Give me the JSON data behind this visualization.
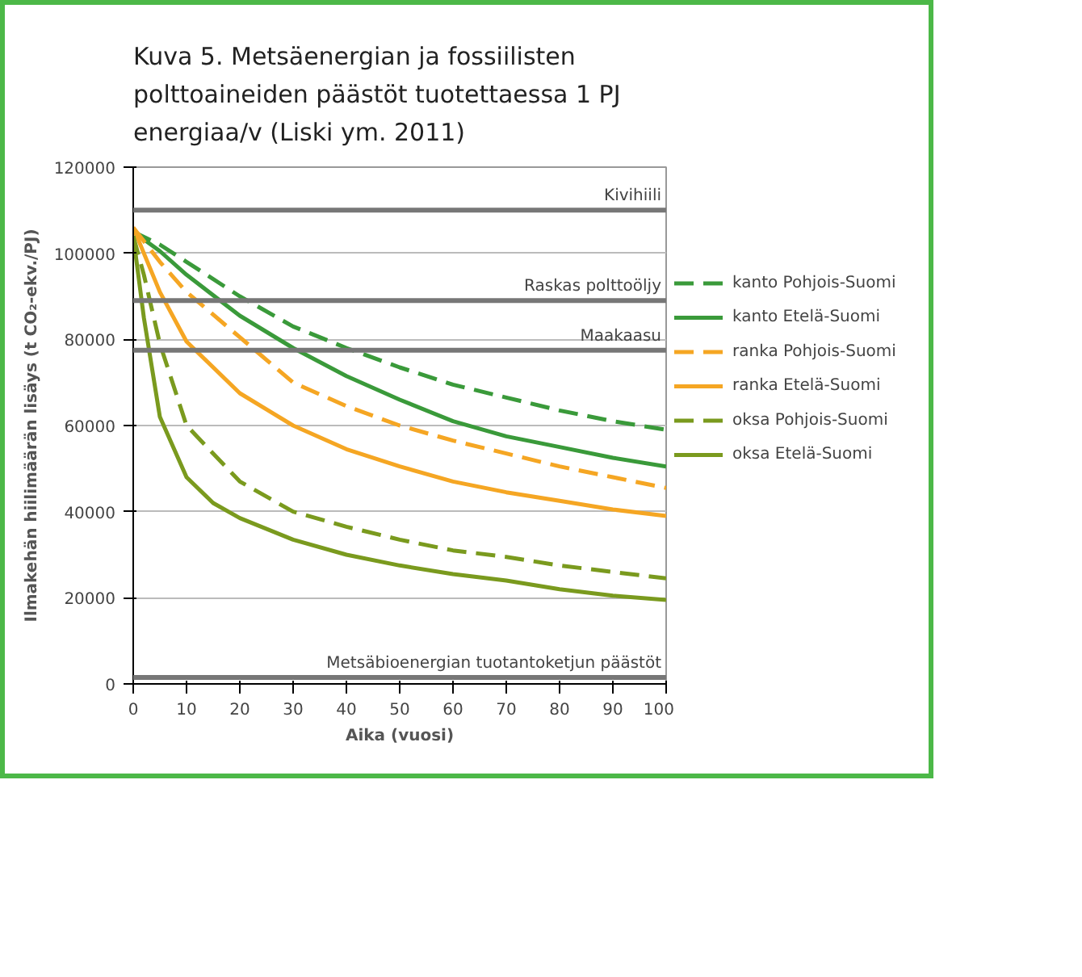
{
  "chart_data": {
    "type": "line",
    "title": "Kuva 5. Metsäenergian ja fossiilisten polttoaineiden päästöt tuotettaessa 1 PJ energiaa/v (Liski ym. 2011)",
    "xlabel": "Aika (vuosi)",
    "ylabel": "Ilmakehän hiilimäärän lisäys (t CO₂-ekv./PJ)",
    "xlim": [
      0,
      100
    ],
    "ylim": [
      0,
      120000
    ],
    "xticks": [
      0,
      10,
      20,
      30,
      40,
      50,
      60,
      70,
      80,
      90,
      100
    ],
    "yticks": [
      0,
      20000,
      40000,
      60000,
      80000,
      100000,
      120000
    ],
    "grid": "y",
    "legend": "right",
    "series": [
      {
        "name": "kanto Pohjois-Suomi",
        "color": "#3a9a3a",
        "line_style": "dashed",
        "x": [
          0,
          5,
          10,
          20,
          30,
          40,
          50,
          60,
          70,
          80,
          90,
          100
        ],
        "values": [
          105000,
          102000,
          98000,
          90000,
          83000,
          78000,
          73500,
          69500,
          66500,
          63500,
          61000,
          59000
        ]
      },
      {
        "name": "kanto Etelä-Suomi",
        "color": "#3a9a3a",
        "line_style": "solid",
        "x": [
          0,
          5,
          10,
          20,
          30,
          40,
          50,
          60,
          70,
          80,
          90,
          100
        ],
        "values": [
          105000,
          100500,
          95000,
          85500,
          78000,
          71500,
          66000,
          61000,
          57500,
          55000,
          52500,
          50500
        ]
      },
      {
        "name": "ranka Pohjois-Suomi",
        "color": "#f5a623",
        "line_style": "dashed",
        "x": [
          0,
          5,
          10,
          20,
          30,
          40,
          50,
          60,
          70,
          80,
          90,
          100
        ],
        "values": [
          106000,
          98000,
          91000,
          80500,
          70000,
          64500,
          60000,
          56500,
          53500,
          50500,
          48000,
          45500
        ]
      },
      {
        "name": "ranka Etelä-Suomi",
        "color": "#f5a623",
        "line_style": "solid",
        "x": [
          0,
          5,
          10,
          20,
          30,
          40,
          50,
          60,
          70,
          80,
          90,
          100
        ],
        "values": [
          106000,
          91000,
          79500,
          67500,
          60000,
          54500,
          50500,
          47000,
          44500,
          42500,
          40500,
          39000
        ]
      },
      {
        "name": "oksa Pohjois-Suomi",
        "color": "#7a9a1e",
        "line_style": "dashed",
        "x": [
          0,
          2,
          5,
          10,
          20,
          30,
          40,
          50,
          60,
          70,
          80,
          90,
          100
        ],
        "values": [
          104000,
          95000,
          79000,
          60000,
          47000,
          40000,
          36500,
          33500,
          31000,
          29500,
          27500,
          26000,
          24500
        ]
      },
      {
        "name": "oksa Etelä-Suomi",
        "color": "#7a9a1e",
        "line_style": "solid",
        "x": [
          0,
          2,
          5,
          10,
          15,
          20,
          30,
          40,
          50,
          60,
          70,
          80,
          90,
          100
        ],
        "values": [
          104000,
          85000,
          62000,
          48000,
          42000,
          38500,
          33500,
          30000,
          27500,
          25500,
          24000,
          22000,
          20500,
          19500
        ]
      }
    ],
    "ref_lines": [
      {
        "axis": "y",
        "value": 110000,
        "label": "Kivihiili",
        "color": "#777777"
      },
      {
        "axis": "y",
        "value": 89000,
        "label": "Raskas polttoöljy",
        "color": "#777777"
      },
      {
        "axis": "y",
        "value": 77500,
        "label": "Maakaasu",
        "color": "#777777"
      },
      {
        "axis": "y",
        "value": 1500,
        "label": "Metsäbioenergian tuotantoketjun päästöt",
        "color": "#777777"
      }
    ]
  }
}
